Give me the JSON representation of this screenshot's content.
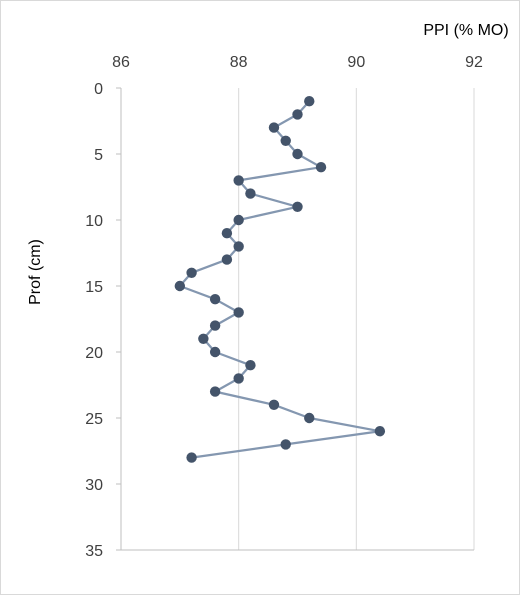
{
  "chart_data": {
    "type": "line",
    "title": "",
    "xlabel": "PPI (% MO)",
    "ylabel": "Prof (cm)",
    "x_axis_position": "top",
    "y_axis_inverted": true,
    "xlim": [
      86,
      92
    ],
    "ylim": [
      0,
      35
    ],
    "x_ticks": [
      86,
      88,
      90,
      92
    ],
    "y_ticks": [
      0,
      5,
      10,
      15,
      20,
      25,
      30,
      35
    ],
    "grid": "vertical gridlines",
    "legend": "none",
    "series": [
      {
        "points": [
          {
            "x": 89.2,
            "y": 1
          },
          {
            "x": 89.0,
            "y": 2
          },
          {
            "x": 88.6,
            "y": 3
          },
          {
            "x": 88.8,
            "y": 4
          },
          {
            "x": 89.0,
            "y": 5
          },
          {
            "x": 89.4,
            "y": 6
          },
          {
            "x": 88.0,
            "y": 7
          },
          {
            "x": 88.2,
            "y": 8
          },
          {
            "x": 89.0,
            "y": 9
          },
          {
            "x": 88.0,
            "y": 10
          },
          {
            "x": 87.8,
            "y": 11
          },
          {
            "x": 88.0,
            "y": 12
          },
          {
            "x": 87.8,
            "y": 13
          },
          {
            "x": 87.2,
            "y": 14
          },
          {
            "x": 87.0,
            "y": 15
          },
          {
            "x": 87.6,
            "y": 16
          },
          {
            "x": 88.0,
            "y": 17
          },
          {
            "x": 87.6,
            "y": 18
          },
          {
            "x": 87.4,
            "y": 19
          },
          {
            "x": 87.6,
            "y": 20
          },
          {
            "x": 88.2,
            "y": 21
          },
          {
            "x": 88.0,
            "y": 22
          },
          {
            "x": 87.6,
            "y": 23
          },
          {
            "x": 88.6,
            "y": 24
          },
          {
            "x": 89.2,
            "y": 25
          },
          {
            "x": 90.4,
            "y": 26
          },
          {
            "x": 88.8,
            "y": 27
          },
          {
            "x": 87.2,
            "y": 28
          }
        ]
      }
    ],
    "colors": {
      "line": "#8497b0",
      "marker": "#44546a",
      "grid": "#d9d9d9",
      "axis": "#bfbfbf"
    }
  }
}
